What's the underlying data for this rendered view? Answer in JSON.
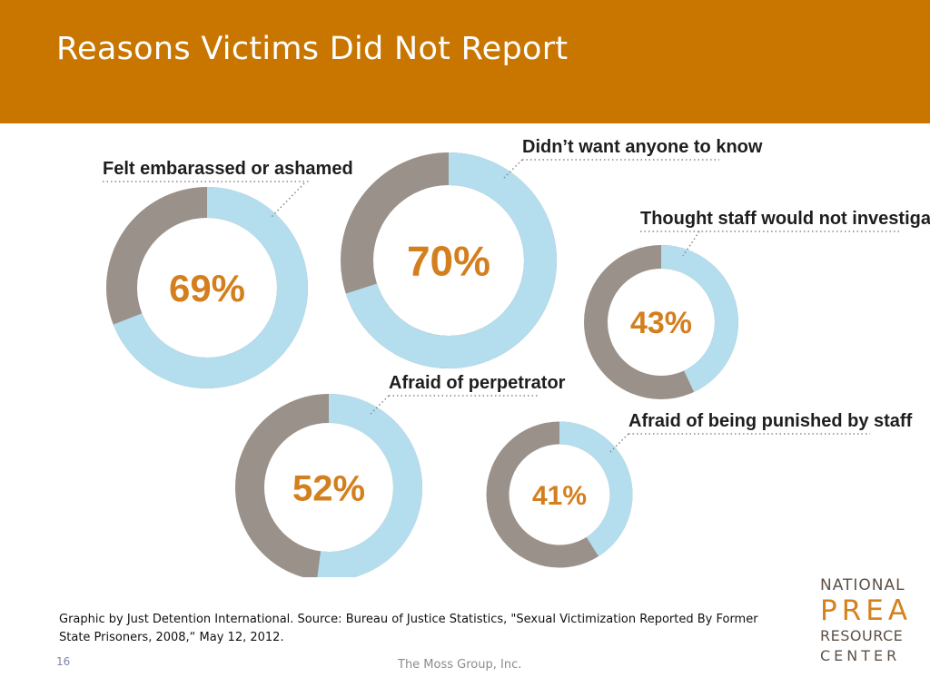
{
  "slide": {
    "title": "Reasons Victims Did Not Report",
    "caption": "Graphic by Just Detention International. Source: Bureau of Justice Statistics, \"Sexual Victimization Reported By Former State Prisoners, 2008,“ May 12, 2012.",
    "slide_number": "16",
    "footer": "The Moss Group, Inc."
  },
  "logo": {
    "line1": "NATIONAL",
    "line2": "PREA",
    "line3": "RESOURCE",
    "line4": "CENTER"
  },
  "colors": {
    "header": "#c87600",
    "share": "#b4ddee",
    "remainder": "#9a918a",
    "percent_text": "#d47f1e"
  },
  "chart_data": {
    "type": "pie",
    "series": [
      {
        "label": "Felt embarassed or ashamed",
        "value": 69,
        "display": "69%"
      },
      {
        "label": "Didn’t want anyone to know",
        "value": 70,
        "display": "70%"
      },
      {
        "label": "Thought staff would not investigate",
        "value": 43,
        "display": "43%"
      },
      {
        "label": "Afraid of perpetrator",
        "value": 52,
        "display": "52%"
      },
      {
        "label": "Afraid of being punished by staff",
        "value": 41,
        "display": "41%"
      }
    ]
  }
}
